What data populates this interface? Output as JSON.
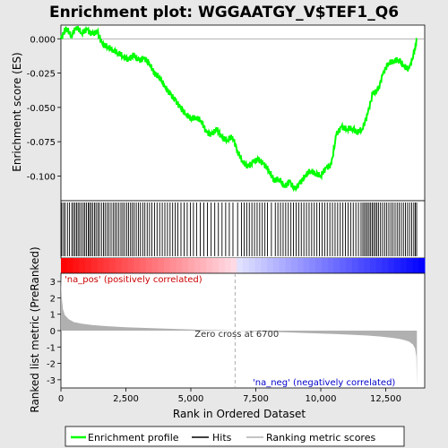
{
  "chart_data": {
    "type": "line",
    "title": "Enrichment plot: WGGAATGY_V$TEF1_Q6",
    "top_panel": {
      "ylabel": "Enrichment score (ES)",
      "ylim": [
        -0.118,
        0.01
      ],
      "yticks": [
        0.0,
        -0.025,
        -0.05,
        -0.075,
        -0.1
      ],
      "ytick_labels": [
        "0.000",
        "-0.025",
        "-0.050",
        "-0.075",
        "-0.100"
      ],
      "series": [
        {
          "color": "#00ff00",
          "x": [
            0,
            200,
            400,
            600,
            800,
            1000,
            1200,
            1400,
            1600,
            1800,
            2000,
            2200,
            2400,
            2600,
            2800,
            3000,
            3200,
            3400,
            3600,
            3800,
            4000,
            4200,
            4400,
            4600,
            4800,
            5000,
            5200,
            5400,
            5600,
            5800,
            6000,
            6200,
            6400,
            6600,
            6800,
            7000,
            7200,
            7400,
            7600,
            7800,
            8000,
            8200,
            8400,
            8600,
            8800,
            9000,
            9200,
            9400,
            9600,
            9800,
            10000,
            10200,
            10400,
            10600,
            10800,
            11000,
            11200,
            11400,
            11600,
            11800,
            12000,
            12200,
            12400,
            12600,
            12800,
            13000,
            13200,
            13400,
            13600,
            13700
          ],
          "y": [
            0.0,
            0.008,
            0.002,
            0.009,
            0.004,
            0.007,
            0.003,
            0.005,
            -0.004,
            -0.006,
            -0.008,
            -0.01,
            -0.013,
            -0.015,
            -0.012,
            -0.016,
            -0.014,
            -0.018,
            -0.025,
            -0.028,
            -0.035,
            -0.04,
            -0.045,
            -0.05,
            -0.055,
            -0.058,
            -0.057,
            -0.06,
            -0.068,
            -0.07,
            -0.066,
            -0.072,
            -0.074,
            -0.071,
            -0.082,
            -0.09,
            -0.093,
            -0.09,
            -0.088,
            -0.091,
            -0.096,
            -0.103,
            -0.102,
            -0.108,
            -0.104,
            -0.11,
            -0.105,
            -0.1,
            -0.096,
            -0.098,
            -0.1,
            -0.094,
            -0.092,
            -0.07,
            -0.064,
            -0.066,
            -0.065,
            -0.068,
            -0.066,
            -0.055,
            -0.04,
            -0.038,
            -0.025,
            -0.018,
            -0.016,
            -0.015,
            -0.02,
            -0.022,
            -0.01,
            0.0
          ]
        }
      ]
    },
    "hits_panel": {
      "hit_ranks": [
        30,
        100,
        160,
        250,
        330,
        420,
        480,
        540,
        600,
        660,
        720,
        790,
        860,
        920,
        980,
        1050,
        1100,
        1160,
        1220,
        1290,
        1350,
        1420,
        1480,
        1560,
        1640,
        1700,
        1780,
        1850,
        1930,
        2010,
        2080,
        2150,
        2230,
        2310,
        2380,
        2450,
        2530,
        2600,
        2680,
        2750,
        2820,
        2900,
        2980,
        3060,
        3150,
        3230,
        3320,
        3410,
        3500,
        3600,
        3700,
        3800,
        3900,
        4000,
        4100,
        4200,
        4300,
        4400,
        4500,
        4620,
        4740,
        4860,
        4980,
        5100,
        5220,
        5360,
        5500,
        5640,
        5780,
        5920,
        6060,
        6200,
        6340,
        6480,
        6620,
        6800,
        6950,
        7050,
        7150,
        7250,
        7350,
        7450,
        7550,
        7650,
        7750,
        7850,
        7950,
        8100,
        8250,
        8350,
        8450,
        8550,
        8650,
        8750,
        8850,
        8950,
        9050,
        9150,
        9250,
        9350,
        9450,
        9550,
        9650,
        9750,
        9850,
        9950,
        10050,
        10150,
        10250,
        10350,
        10450,
        10550,
        10650,
        10750,
        10850,
        10950,
        11050,
        11150,
        11250,
        11350,
        11450,
        11550,
        11620,
        11680,
        11740,
        11800,
        11860,
        11920,
        11980,
        12040,
        12100,
        12160,
        12220,
        12300,
        12380,
        12460,
        12540,
        12620,
        12700,
        12780,
        12860,
        12940,
        13020,
        13100,
        13180,
        13260,
        13340,
        13420,
        13500,
        13580,
        13640,
        13690
      ]
    },
    "bottom_panel": {
      "ylabel": "Ranked list metric (PreRanked)",
      "ylim": [
        -3.5,
        3.5
      ],
      "yticks": [
        3,
        2,
        1,
        0,
        -1,
        -2,
        -3
      ],
      "ytick_labels": [
        "3",
        "2",
        "1",
        "0",
        "-1",
        "-2",
        "-3"
      ],
      "metric_curve": {
        "x": [
          0,
          30,
          80,
          150,
          300,
          500,
          800,
          1200,
          1800,
          2500,
          3500,
          4500,
          5500,
          6700,
          7500,
          8500,
          9500,
          10500,
          11200,
          11800,
          12300,
          12700,
          13000,
          13200,
          13400,
          13550,
          13630,
          13680,
          13700
        ],
        "y": [
          3.3,
          2.0,
          1.3,
          0.95,
          0.7,
          0.52,
          0.42,
          0.34,
          0.27,
          0.21,
          0.15,
          0.1,
          0.05,
          0.0,
          -0.05,
          -0.1,
          -0.15,
          -0.2,
          -0.25,
          -0.3,
          -0.36,
          -0.43,
          -0.5,
          -0.57,
          -0.67,
          -0.85,
          -1.1,
          -1.6,
          -3.4
        ]
      }
    },
    "xaxis": {
      "xlabel": "Rank in Ordered Dataset",
      "xlim": [
        0,
        14000
      ],
      "xticks": [
        0,
        2500,
        5000,
        7500,
        10000,
        12500
      ],
      "xtick_labels": [
        "0",
        "2,500",
        "5,000",
        "7,500",
        "10,000",
        "12,500"
      ]
    },
    "zero_cross_rank": 6700,
    "annotations": {
      "zero_cross": "Zero cross at 6700",
      "pos_label": "'na_pos' (positively correlated)",
      "neg_label": "'na_neg' (negatively correlated)"
    },
    "legend": {
      "placement": "bottom",
      "items": [
        {
          "label": "Enrichment profile",
          "color": "#00ff00"
        },
        {
          "label": "Hits",
          "color": "#000000"
        },
        {
          "label": "Ranking metric scores",
          "color": "#b0b0b0"
        }
      ]
    },
    "colors": {
      "positive": "#ff0000",
      "negative": "#0000ff",
      "metric_fill": "#b0b0b0",
      "profile": "#00ff00"
    }
  }
}
